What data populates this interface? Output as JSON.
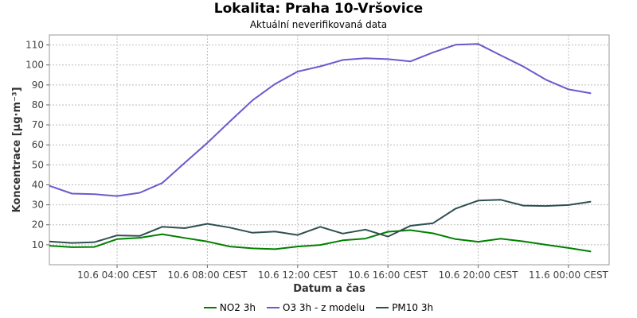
{
  "chart_data": {
    "type": "line",
    "title": "Lokalita: Praha 10-Vršovice",
    "subtitle": "Aktuální neverifikovaná data",
    "xlabel": "Datum a čas",
    "ylabel": "Koncentrace [µg·m⁻³]",
    "ylim": [
      0,
      115
    ],
    "yticks": [
      10,
      20,
      30,
      40,
      50,
      60,
      70,
      80,
      90,
      100,
      110
    ],
    "xlim": [
      1.0,
      25.8
    ],
    "xticks": [
      {
        "x": 4,
        "label": "10.6 04:00 CEST"
      },
      {
        "x": 8,
        "label": "10.6 08:00 CEST"
      },
      {
        "x": 12,
        "label": "10.6 12:00 CEST"
      },
      {
        "x": 16,
        "label": "10.6 16:00 CEST"
      },
      {
        "x": 20,
        "label": "10.6 20:00 CEST"
      },
      {
        "x": 24,
        "label": "11.6 00:00 CEST"
      }
    ],
    "x": [
      1,
      2,
      3,
      4,
      5,
      6,
      7,
      8,
      9,
      10,
      11,
      12,
      13,
      14,
      15,
      16,
      17,
      18,
      19,
      20,
      21,
      22,
      23,
      24,
      25
    ],
    "grid": true,
    "legend_position": "bottom",
    "series": [
      {
        "name": "NO2 3h",
        "color": "#008000",
        "values": [
          9.5,
          8.8,
          8.9,
          12.8,
          13.5,
          15.3,
          13.4,
          11.6,
          9.1,
          8.2,
          7.8,
          9.1,
          9.9,
          12.2,
          13.1,
          16.5,
          17.3,
          15.7,
          12.8,
          11.5,
          13.0,
          11.7,
          10.0,
          8.4,
          6.6
        ]
      },
      {
        "name": "O3 3h - z modelu",
        "color": "#6a5acd",
        "values": [
          39.5,
          35.6,
          35.3,
          34.4,
          36.0,
          40.9,
          51.0,
          61.0,
          71.8,
          82.3,
          90.5,
          96.7,
          99.3,
          102.5,
          103.4,
          102.9,
          101.8,
          106.3,
          110.1,
          110.5,
          104.8,
          99.2,
          92.6,
          87.8,
          85.8
        ]
      },
      {
        "name": "PM10 3h",
        "color": "#2f4f4f",
        "values": [
          11.6,
          10.9,
          11.3,
          14.7,
          14.4,
          19.0,
          18.3,
          20.5,
          18.6,
          16.0,
          16.6,
          14.9,
          19.0,
          15.6,
          17.6,
          14.1,
          19.5,
          20.8,
          28.1,
          32.1,
          32.5,
          29.6,
          29.4,
          29.9,
          31.6
        ]
      }
    ]
  }
}
